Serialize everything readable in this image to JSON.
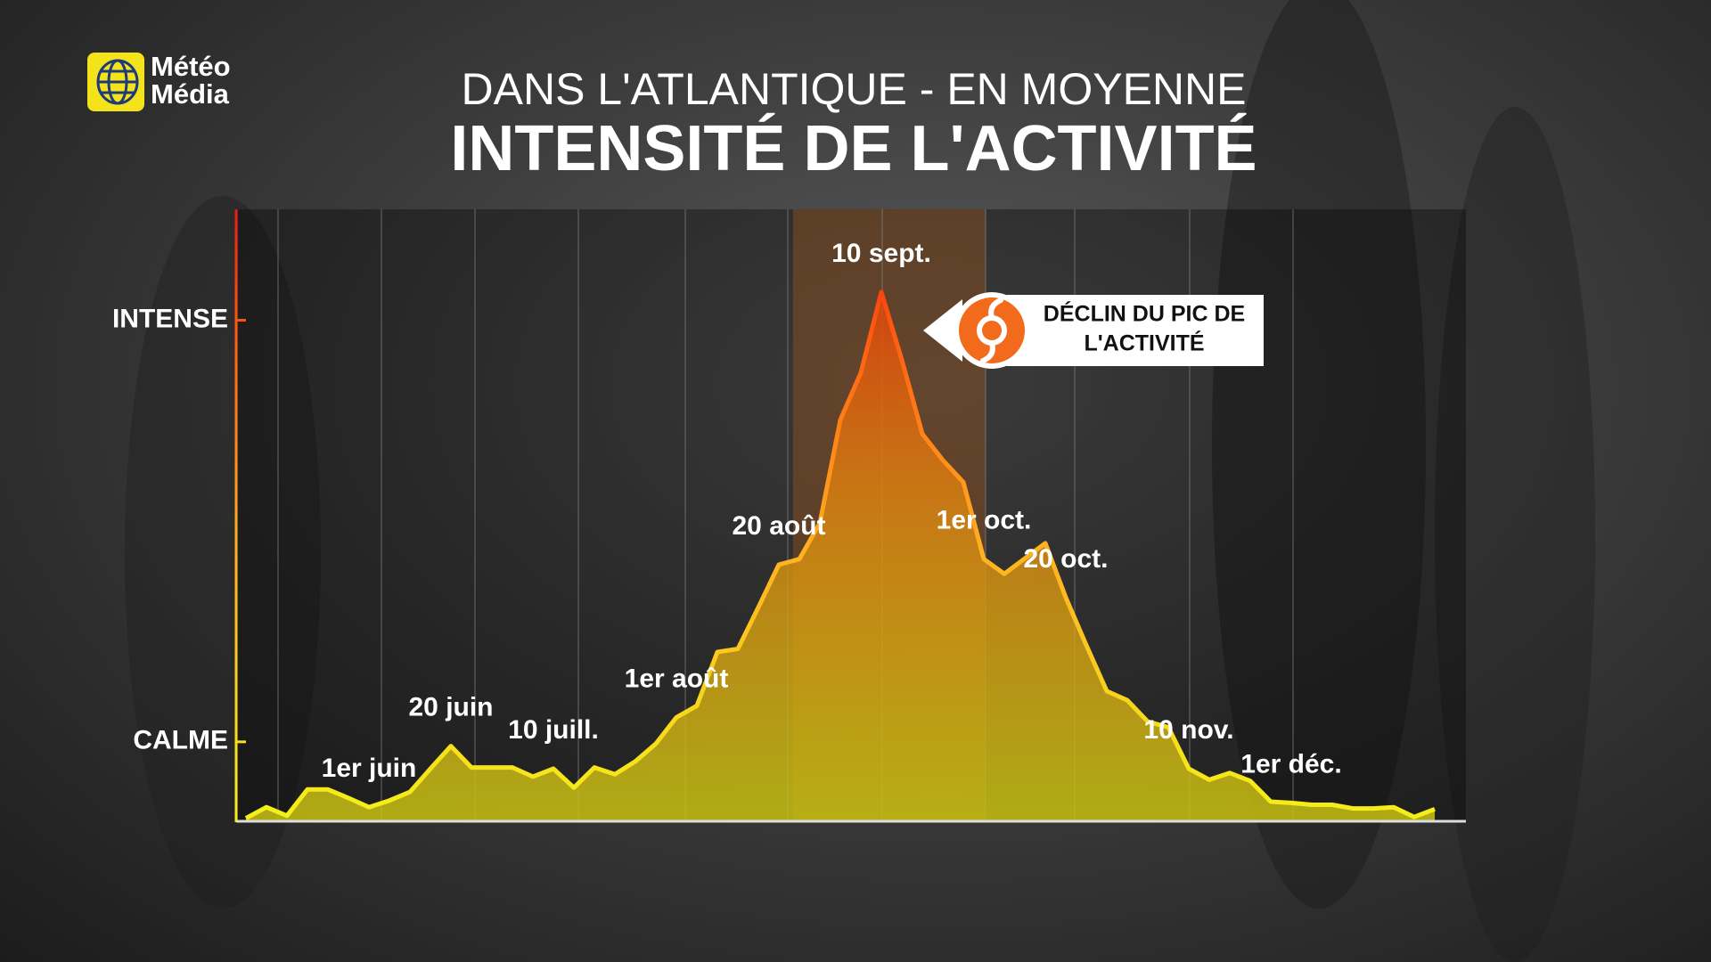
{
  "logo": [
    "Météo",
    "Média"
  ],
  "chart_data": {
    "type": "line",
    "subtitle": "DANS L'ATLANTIQUE - EN MOYENNE",
    "title": "INTENSITÉ DE L'ACTIVITÉ",
    "categories": [
      null,
      null,
      null,
      null,
      null,
      null,
      "1er juin",
      null,
      null,
      null,
      "20 juin",
      null,
      null,
      null,
      null,
      "10 juill.",
      null,
      null,
      null,
      null,
      null,
      "1er août",
      null,
      null,
      null,
      null,
      "20 août",
      null,
      null,
      null,
      null,
      "10 sept.",
      null,
      null,
      null,
      null,
      "1er oct.",
      null,
      null,
      null,
      "20 oct.",
      null,
      null,
      null,
      null,
      null,
      "10 nov.",
      null,
      null,
      null,
      null,
      "1er déc.",
      null,
      null,
      null,
      null,
      null,
      null,
      null
    ],
    "values": [
      0.5,
      2.3,
      0.9,
      5.2,
      5.2,
      3.8,
      2.3,
      3.4,
      4.8,
      8.6,
      12.3,
      8.8,
      8.8,
      8.8,
      7.3,
      8.6,
      5.5,
      8.8,
      7.7,
      9.8,
      12.7,
      17.0,
      18.9,
      27.7,
      28.2,
      35.0,
      42.0,
      42.9,
      48.8,
      65.7,
      73.4,
      86.6,
      75.5,
      63.4,
      59.1,
      55.5,
      42.9,
      40.5,
      43.0,
      45.5,
      36.6,
      28.8,
      21.3,
      19.8,
      16.3,
      15.4,
      8.6,
      6.8,
      7.9,
      6.6,
      3.2,
      3.0,
      2.7,
      2.7,
      2.1,
      2.1,
      2.3,
      0.7,
      2.0
    ],
    "color": "#ffe21a",
    "ylim": [
      0,
      100
    ],
    "yticks": [
      {
        "value": 13,
        "label": "CALME"
      },
      {
        "value": 82,
        "label": "INTENSE"
      }
    ],
    "annotation": [
      "DÉCLIN DU PIC DE",
      "L'ACTIVITÉ"
    ]
  }
}
